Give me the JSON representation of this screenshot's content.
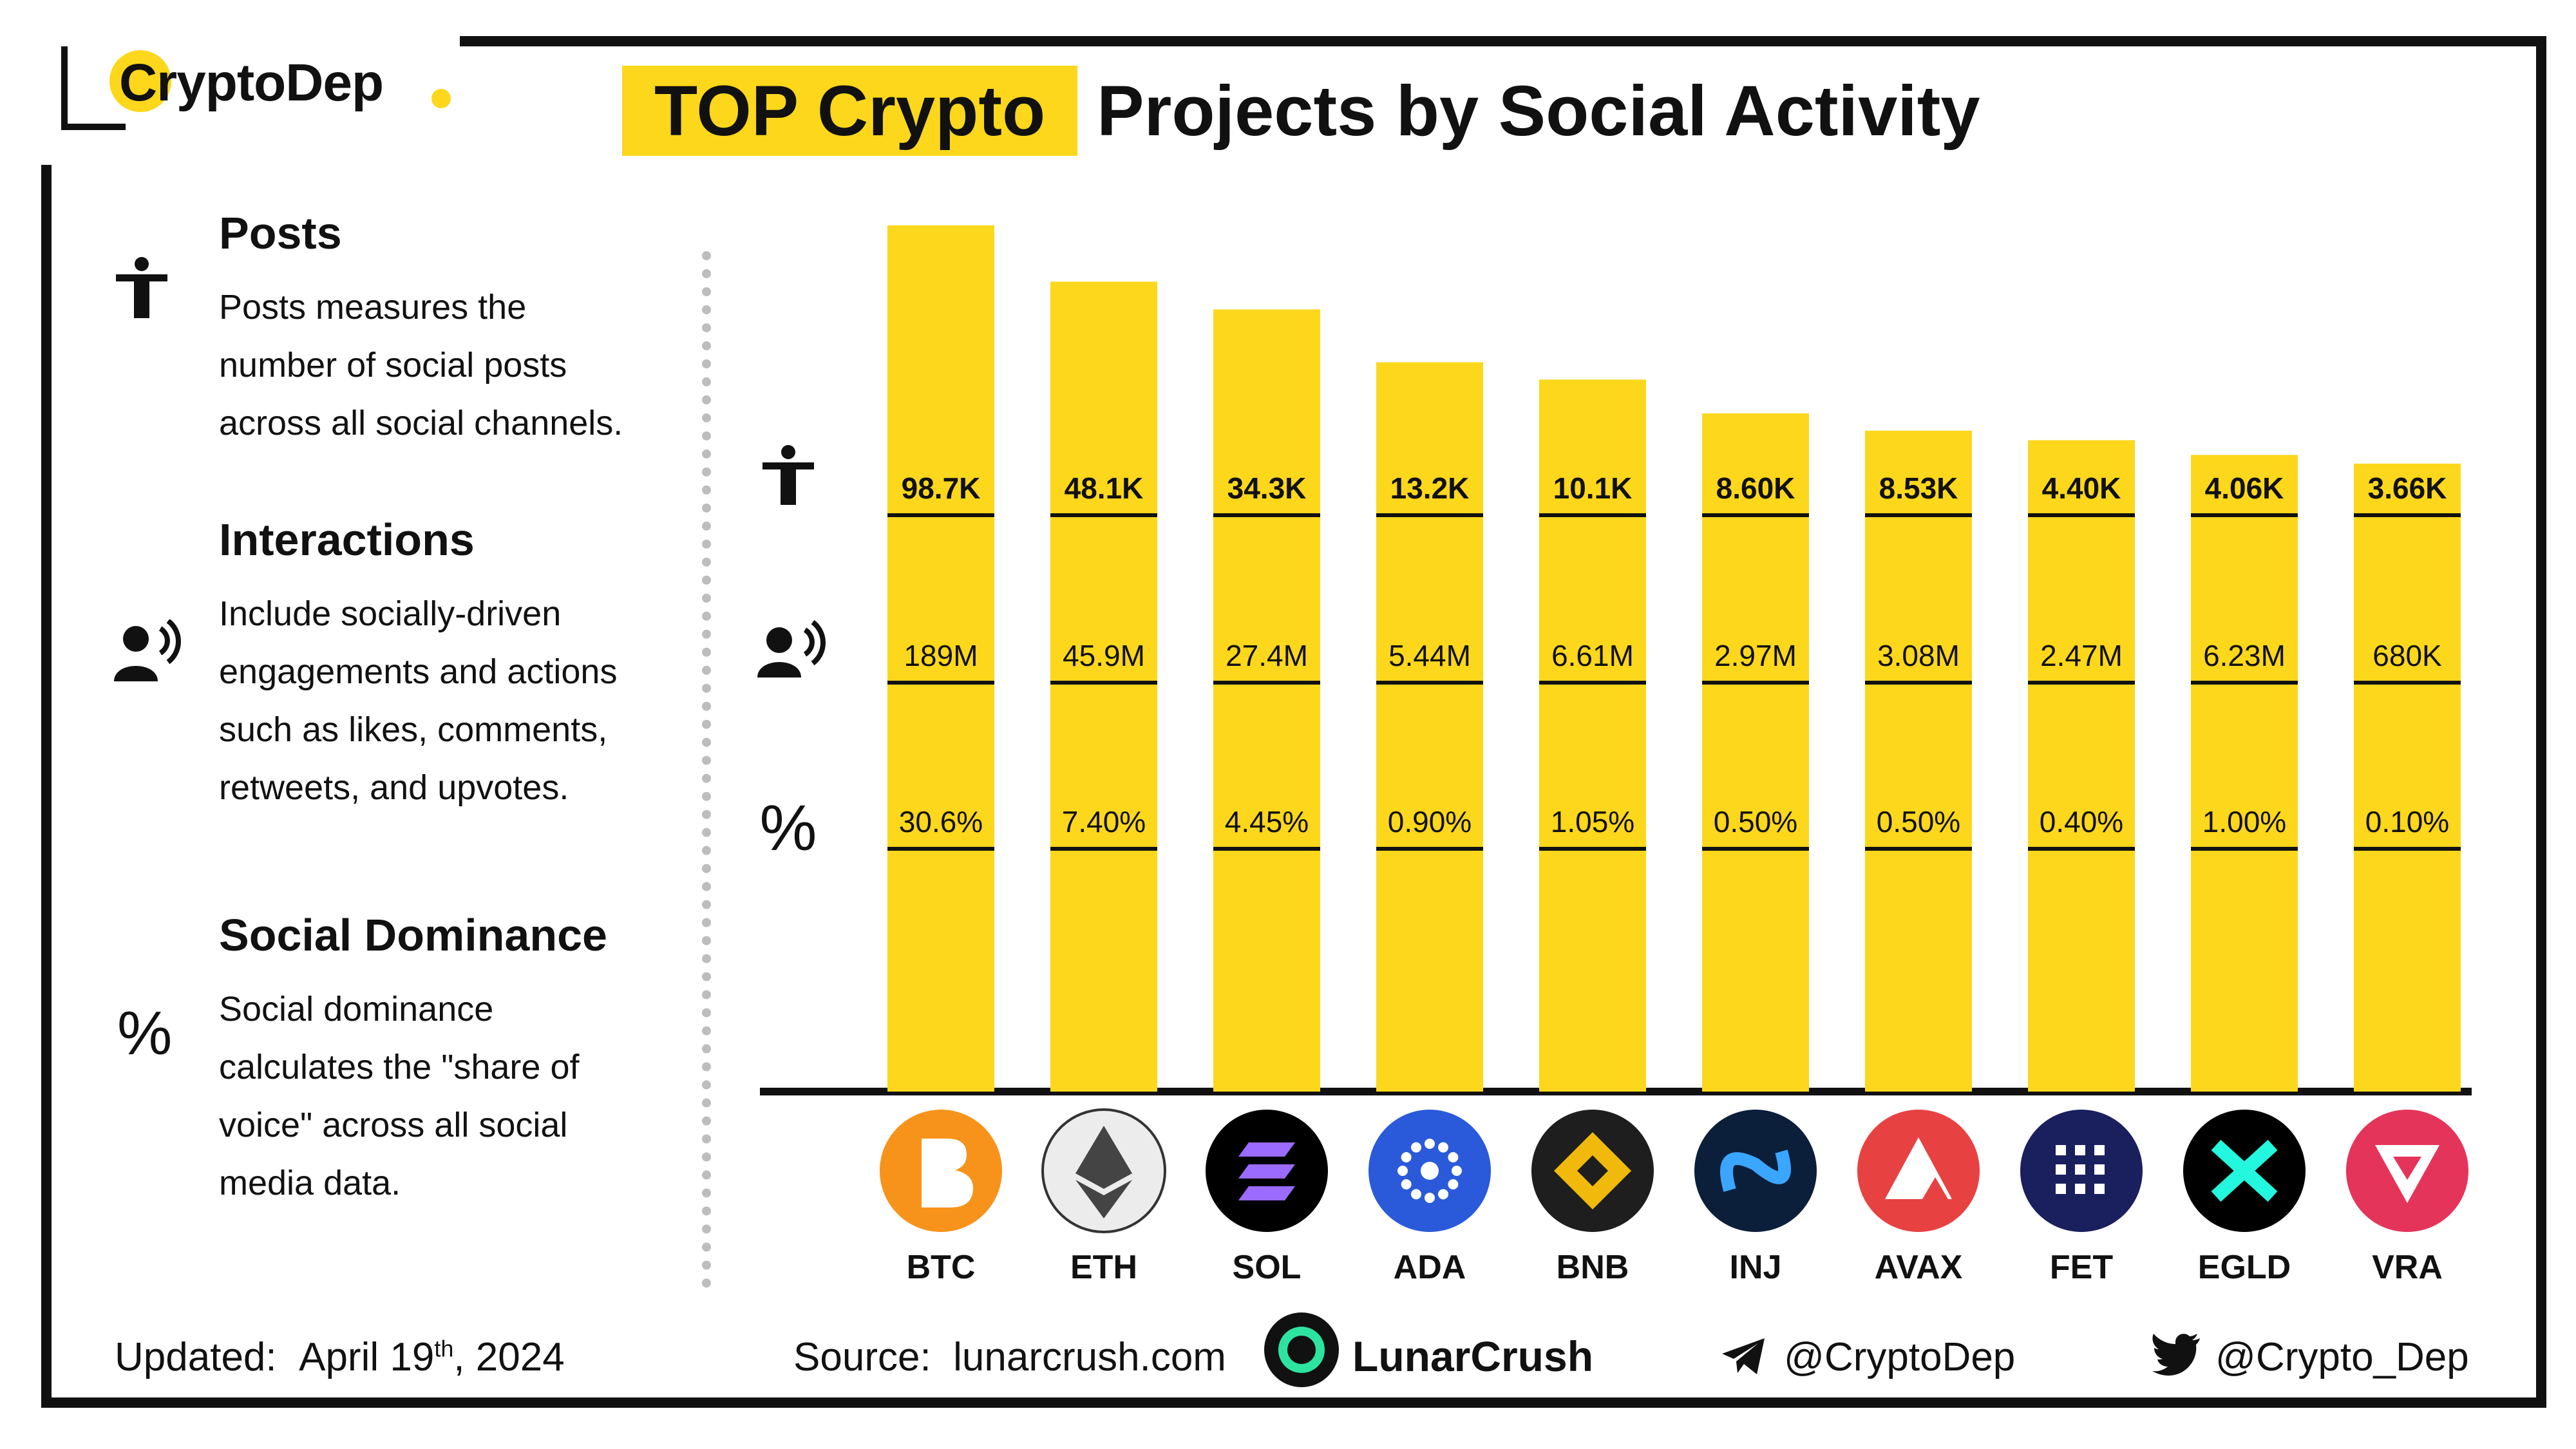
{
  "brand": {
    "name": "CryptoDep"
  },
  "title": {
    "highlight": "TOP Crypto",
    "rest": "Projects by Social Activity"
  },
  "legend": {
    "posts": {
      "heading": "Posts",
      "lines": [
        "Posts measures the",
        "number of social posts",
        "across all social channels."
      ]
    },
    "interactions": {
      "heading": "Interactions",
      "lines": [
        "Include socially-driven",
        "engagements and actions",
        "such as likes, comments,",
        "retweets, and upvotes."
      ]
    },
    "dominance": {
      "heading": "Social Dominance",
      "lines": [
        "Social dominance",
        "calculates the \"share of",
        "voice\" across all social",
        "media data."
      ]
    }
  },
  "chart_data": {
    "type": "bar",
    "categories": [
      "BTC",
      "ETH",
      "SOL",
      "ADA",
      "BNB",
      "INJ",
      "AVAX",
      "FET",
      "EGLD",
      "VRA"
    ],
    "bar_height_relative": [
      1.0,
      0.935,
      0.903,
      0.842,
      0.822,
      0.783,
      0.763,
      0.752,
      0.735,
      0.725
    ],
    "series": [
      {
        "name": "Posts",
        "values": [
          "98.7K",
          "48.1K",
          "34.3K",
          "13.2K",
          "10.1K",
          "8.60K",
          "8.53K",
          "4.40K",
          "4.06K",
          "3.66K"
        ]
      },
      {
        "name": "Interactions",
        "values": [
          "189M",
          "45.9M",
          "27.4M",
          "5.44M",
          "6.61M",
          "2.97M",
          "3.08M",
          "2.47M",
          "6.23M",
          "680K"
        ]
      },
      {
        "name": "Social Dominance",
        "values": [
          "30.6%",
          "7.40%",
          "4.45%",
          "0.90%",
          "1.05%",
          "0.50%",
          "0.50%",
          "0.40%",
          "1.00%",
          "0.10%"
        ]
      }
    ],
    "row_symbols": [
      "",
      "",
      "%"
    ],
    "coin_colors": [
      "#f7931a",
      "#ececec",
      "#000000",
      "#2a5ada",
      "#1e1e1e",
      "#0c1f3a",
      "#e84142",
      "#1a1f5e",
      "#000000",
      "#e5345a"
    ],
    "coin_icons": [
      "bitcoin-icon",
      "ethereum-icon",
      "solana-icon",
      "cardano-icon",
      "bnb-icon",
      "injective-icon",
      "avalanche-icon",
      "fetch-icon",
      "multiversx-icon",
      "verasity-icon"
    ]
  },
  "colors": {
    "accent": "#fdd71b",
    "text": "#111111"
  },
  "footer": {
    "updated_label": "Updated:",
    "updated_date": "April 19",
    "updated_sup": "th",
    "updated_year": ", 2024",
    "source_label": "Source:",
    "source_value": "lunarcrush.com",
    "partner": "LunarCrush",
    "telegram": "@CryptoDep",
    "twitter": "@Crypto_Dep"
  }
}
